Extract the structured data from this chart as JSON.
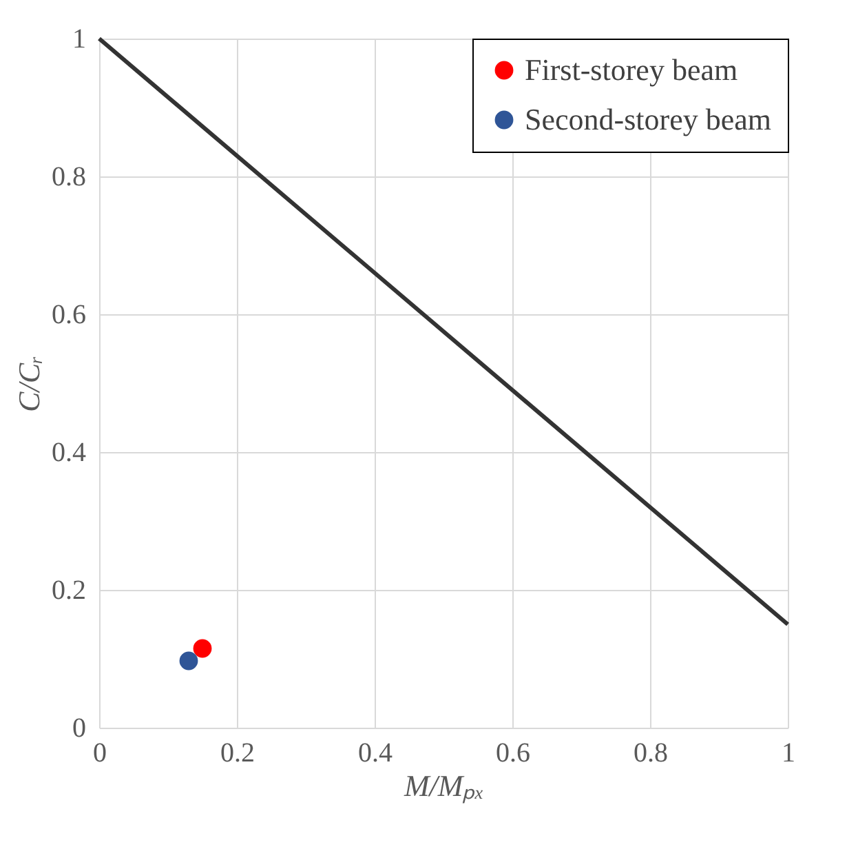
{
  "chart_data": {
    "type": "scatter",
    "xlabel": "M/Mₚₓ",
    "ylabel": "C/Cᵣ",
    "xlim": [
      0,
      1
    ],
    "ylim": [
      0,
      1
    ],
    "xticks": [
      0,
      0.2,
      0.4,
      0.6,
      0.8,
      1
    ],
    "yticks": [
      0,
      0.2,
      0.4,
      0.6,
      0.8,
      1
    ],
    "grid": true,
    "legend": "top right",
    "marker": "circle",
    "series": [
      {
        "type": "line",
        "color": "#333333",
        "x": [
          0,
          1
        ],
        "values": [
          1,
          0.15
        ],
        "line_style": "solid",
        "marker": "none"
      },
      {
        "name": "First-storey beam",
        "color": "#ff0000",
        "x": [
          0.15
        ],
        "values": [
          0.115
        ]
      },
      {
        "name": "Second-storey beam",
        "color": "#2f5597",
        "x": [
          0.13
        ],
        "values": [
          0.097
        ]
      }
    ]
  }
}
